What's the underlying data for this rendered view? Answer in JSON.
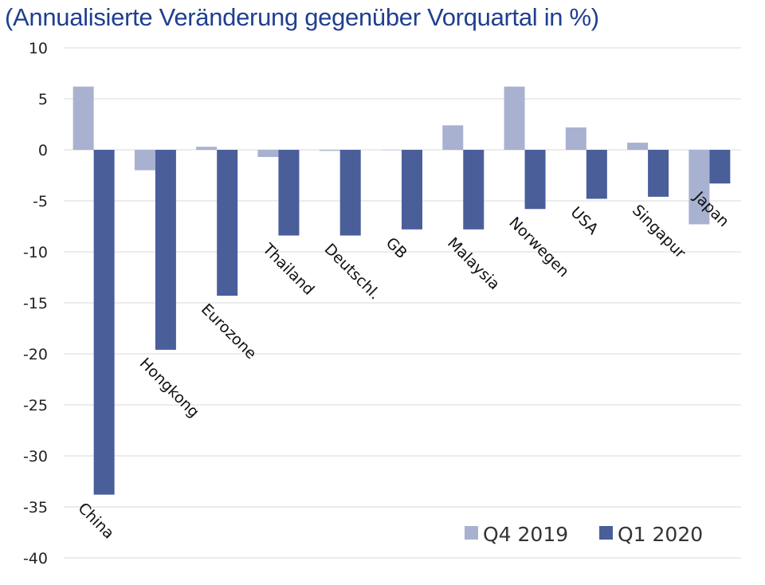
{
  "chart_data": {
    "type": "bar",
    "title": "",
    "subtitle": "(Annualisierte Veränderung gegenüber Vorquartal in %)",
    "xlabel": "",
    "ylabel": "",
    "ylim": [
      -40,
      10
    ],
    "yticks": [
      10,
      5,
      0,
      -5,
      -10,
      -15,
      -20,
      -25,
      -30,
      -35,
      -40
    ],
    "grid": true,
    "legend_position": "bottom-right",
    "categories": [
      "China",
      "Hongkong",
      "Eurozone",
      "Thailand",
      "Deutschl.",
      "GB",
      "Malaysia",
      "Norwegen",
      "USA",
      "Singapur",
      "Japan"
    ],
    "series": [
      {
        "name": "Q4 2019",
        "color": "#a8b2d0",
        "values": [
          6.2,
          -2.0,
          0.3,
          -0.7,
          -0.1,
          0.0,
          2.4,
          6.2,
          2.2,
          0.7,
          -7.3
        ]
      },
      {
        "name": "Q1 2020",
        "color": "#4a5e9a",
        "values": [
          -33.8,
          -19.6,
          -14.3,
          -8.4,
          -8.4,
          -7.8,
          -7.8,
          -5.8,
          -4.8,
          -4.6,
          -3.3
        ]
      }
    ]
  }
}
